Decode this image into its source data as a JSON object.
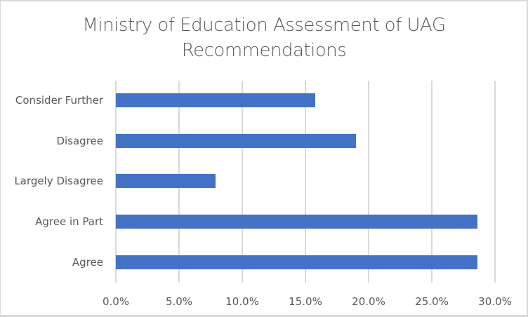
{
  "chart_data": {
    "type": "bar",
    "orientation": "horizontal",
    "title": "Ministry of Education Assessment of UAG Recommendations",
    "title_lines": [
      "Ministry of Education Assessment of UAG",
      "Recommendations"
    ],
    "categories": [
      "Consider Further",
      "Disagree",
      "Largely Disagree",
      "Agree in Part",
      "Agree"
    ],
    "values": [
      15.8,
      19.0,
      7.9,
      28.6,
      28.6
    ],
    "unit": "%",
    "xlabel": "",
    "ylabel": "",
    "xlim": [
      0,
      30
    ],
    "xticks": [
      "0.0%",
      "5.0%",
      "10.0%",
      "15.0%",
      "20.0%",
      "25.0%",
      "30.0%"
    ],
    "grid": true,
    "legend": "none",
    "bar_color": "#4472c4"
  }
}
